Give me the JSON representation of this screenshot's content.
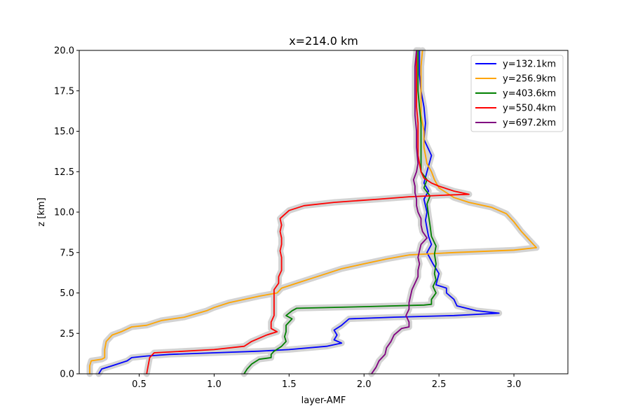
{
  "chart_data": {
    "type": "line",
    "title": "x=214.0 km",
    "xlabel": "layer-AMF",
    "ylabel": "z [km]",
    "xlim": [
      0.1,
      3.36
    ],
    "ylim": [
      0,
      20
    ],
    "xticks": [
      0.5,
      1.0,
      1.5,
      2.0,
      2.5,
      3.0
    ],
    "xtick_labels": [
      "0.5",
      "1.0",
      "1.5",
      "2.0",
      "2.5",
      "3.0"
    ],
    "yticks": [
      0,
      2.5,
      5.0,
      7.5,
      10.0,
      12.5,
      15.0,
      17.5,
      20.0
    ],
    "ytick_labels": [
      "0.0",
      "2.5",
      "5.0",
      "7.5",
      "10.0",
      "12.5",
      "15.0",
      "17.5",
      "20.0"
    ],
    "grid": false,
    "legend_position": "top-right",
    "band_color": "#d3d3d3",
    "series": [
      {
        "name": "y=132.1km",
        "color": "#0000ff",
        "points": [
          [
            0.23,
            0
          ],
          [
            0.25,
            0.3
          ],
          [
            0.32,
            0.5
          ],
          [
            0.42,
            0.8
          ],
          [
            0.45,
            1.0
          ],
          [
            0.55,
            1.1
          ],
          [
            0.7,
            1.2
          ],
          [
            1.0,
            1.3
          ],
          [
            1.3,
            1.4
          ],
          [
            1.5,
            1.5
          ],
          [
            1.75,
            1.7
          ],
          [
            1.85,
            1.9
          ],
          [
            1.8,
            2.1
          ],
          [
            1.82,
            2.4
          ],
          [
            1.8,
            2.7
          ],
          [
            1.85,
            3.0
          ],
          [
            1.9,
            3.4
          ],
          [
            2.2,
            3.5
          ],
          [
            2.6,
            3.6
          ],
          [
            2.9,
            3.75
          ],
          [
            2.75,
            3.9
          ],
          [
            2.62,
            4.2
          ],
          [
            2.6,
            4.6
          ],
          [
            2.55,
            5.0
          ],
          [
            2.55,
            5.3
          ],
          [
            2.48,
            5.5
          ],
          [
            2.5,
            6.2
          ],
          [
            2.46,
            6.8
          ],
          [
            2.42,
            7.5
          ],
          [
            2.45,
            8.0
          ],
          [
            2.43,
            8.5
          ],
          [
            2.42,
            9.0
          ],
          [
            2.41,
            9.5
          ],
          [
            2.42,
            10.0
          ],
          [
            2.4,
            10.8
          ],
          [
            2.43,
            11.3
          ],
          [
            2.4,
            11.8
          ],
          [
            2.42,
            12.5
          ],
          [
            2.45,
            13.5
          ],
          [
            2.4,
            14.5
          ],
          [
            2.41,
            15.5
          ],
          [
            2.4,
            16.5
          ],
          [
            2.38,
            17.5
          ],
          [
            2.37,
            18.5
          ],
          [
            2.37,
            20
          ]
        ]
      },
      {
        "name": "y=256.9km",
        "color": "#ffa500",
        "points": [
          [
            0.17,
            0
          ],
          [
            0.17,
            0.5
          ],
          [
            0.18,
            0.8
          ],
          [
            0.25,
            0.9
          ],
          [
            0.27,
            1.0
          ],
          [
            0.27,
            1.5
          ],
          [
            0.28,
            2.0
          ],
          [
            0.32,
            2.4
          ],
          [
            0.38,
            2.6
          ],
          [
            0.45,
            2.9
          ],
          [
            0.55,
            3.0
          ],
          [
            0.65,
            3.3
          ],
          [
            0.8,
            3.5
          ],
          [
            0.95,
            3.9
          ],
          [
            1.0,
            4.1
          ],
          [
            1.1,
            4.4
          ],
          [
            1.2,
            4.6
          ],
          [
            1.3,
            4.8
          ],
          [
            1.42,
            5.0
          ],
          [
            1.45,
            5.3
          ],
          [
            1.55,
            5.6
          ],
          [
            1.65,
            5.9
          ],
          [
            1.75,
            6.2
          ],
          [
            1.85,
            6.5
          ],
          [
            2.0,
            6.8
          ],
          [
            2.15,
            7.1
          ],
          [
            2.3,
            7.35
          ],
          [
            2.6,
            7.5
          ],
          [
            3.0,
            7.65
          ],
          [
            3.15,
            7.8
          ],
          [
            3.1,
            8.3
          ],
          [
            3.05,
            8.8
          ],
          [
            3.0,
            9.4
          ],
          [
            2.95,
            9.9
          ],
          [
            2.85,
            10.3
          ],
          [
            2.7,
            10.6
          ],
          [
            2.6,
            10.9
          ],
          [
            2.55,
            11.2
          ],
          [
            2.5,
            11.5
          ],
          [
            2.47,
            12.0
          ],
          [
            2.45,
            12.5
          ],
          [
            2.42,
            13.0
          ],
          [
            2.4,
            14.0
          ],
          [
            2.4,
            15.0
          ],
          [
            2.38,
            16.0
          ],
          [
            2.38,
            17.0
          ],
          [
            2.38,
            18.0
          ],
          [
            2.38,
            19.0
          ],
          [
            2.39,
            20
          ]
        ]
      },
      {
        "name": "y=403.6km",
        "color": "#008000",
        "points": [
          [
            1.2,
            0
          ],
          [
            1.22,
            0.3
          ],
          [
            1.25,
            0.6
          ],
          [
            1.3,
            0.9
          ],
          [
            1.38,
            1.0
          ],
          [
            1.38,
            1.2
          ],
          [
            1.4,
            1.4
          ],
          [
            1.45,
            1.7
          ],
          [
            1.48,
            2.0
          ],
          [
            1.47,
            2.3
          ],
          [
            1.48,
            2.6
          ],
          [
            1.48,
            3.0
          ],
          [
            1.52,
            3.4
          ],
          [
            1.48,
            3.6
          ],
          [
            1.52,
            3.9
          ],
          [
            1.55,
            4.05
          ],
          [
            2.0,
            4.15
          ],
          [
            2.4,
            4.25
          ],
          [
            2.45,
            4.3
          ],
          [
            2.45,
            4.6
          ],
          [
            2.48,
            5.0
          ],
          [
            2.46,
            5.4
          ],
          [
            2.48,
            5.8
          ],
          [
            2.47,
            6.2
          ],
          [
            2.48,
            6.8
          ],
          [
            2.47,
            7.4
          ],
          [
            2.48,
            7.9
          ],
          [
            2.45,
            8.5
          ],
          [
            2.44,
            9.2
          ],
          [
            2.43,
            9.8
          ],
          [
            2.42,
            10.5
          ],
          [
            2.44,
            11.0
          ],
          [
            2.4,
            11.5
          ],
          [
            2.42,
            12.0
          ],
          [
            2.38,
            12.5
          ],
          [
            2.38,
            13.5
          ],
          [
            2.38,
            14.5
          ],
          [
            2.38,
            15.5
          ],
          [
            2.37,
            16.5
          ],
          [
            2.36,
            17.5
          ],
          [
            2.36,
            18.5
          ],
          [
            2.36,
            20
          ]
        ]
      },
      {
        "name": "y=550.4km",
        "color": "#ff0000",
        "points": [
          [
            0.55,
            0
          ],
          [
            0.56,
            0.5
          ],
          [
            0.57,
            1.0
          ],
          [
            0.6,
            1.3
          ],
          [
            1.0,
            1.5
          ],
          [
            1.2,
            1.7
          ],
          [
            1.25,
            2.0
          ],
          [
            1.3,
            2.2
          ],
          [
            1.35,
            2.4
          ],
          [
            1.42,
            2.6
          ],
          [
            1.38,
            2.8
          ],
          [
            1.38,
            3.2
          ],
          [
            1.4,
            3.6
          ],
          [
            1.4,
            4.0
          ],
          [
            1.4,
            4.4
          ],
          [
            1.4,
            4.8
          ],
          [
            1.4,
            5.2
          ],
          [
            1.43,
            5.6
          ],
          [
            1.43,
            6.0
          ],
          [
            1.45,
            6.4
          ],
          [
            1.45,
            6.8
          ],
          [
            1.45,
            7.2
          ],
          [
            1.44,
            7.6
          ],
          [
            1.45,
            8.0
          ],
          [
            1.45,
            8.4
          ],
          [
            1.44,
            8.8
          ],
          [
            1.45,
            9.2
          ],
          [
            1.44,
            9.6
          ],
          [
            1.5,
            10.1
          ],
          [
            1.6,
            10.4
          ],
          [
            1.8,
            10.6
          ],
          [
            2.1,
            10.8
          ],
          [
            2.3,
            10.95
          ],
          [
            2.55,
            11.05
          ],
          [
            2.7,
            11.1
          ],
          [
            2.6,
            11.3
          ],
          [
            2.5,
            11.6
          ],
          [
            2.45,
            11.8
          ],
          [
            2.4,
            12.1
          ],
          [
            2.38,
            12.5
          ],
          [
            2.36,
            13.5
          ],
          [
            2.36,
            14.5
          ],
          [
            2.36,
            15.5
          ],
          [
            2.35,
            16.5
          ],
          [
            2.35,
            17.5
          ],
          [
            2.35,
            18.5
          ],
          [
            2.35,
            20
          ]
        ]
      },
      {
        "name": "y=697.2km",
        "color": "#800080",
        "points": [
          [
            2.05,
            0
          ],
          [
            2.08,
            0.4
          ],
          [
            2.1,
            0.8
          ],
          [
            2.14,
            1.2
          ],
          [
            2.15,
            1.6
          ],
          [
            2.18,
            2.0
          ],
          [
            2.2,
            2.4
          ],
          [
            2.25,
            2.8
          ],
          [
            2.3,
            2.9
          ],
          [
            2.3,
            3.2
          ],
          [
            2.28,
            3.6
          ],
          [
            2.3,
            4.0
          ],
          [
            2.3,
            4.4
          ],
          [
            2.31,
            4.8
          ],
          [
            2.32,
            5.2
          ],
          [
            2.34,
            5.6
          ],
          [
            2.36,
            6.0
          ],
          [
            2.36,
            6.4
          ],
          [
            2.37,
            6.8
          ],
          [
            2.36,
            7.2
          ],
          [
            2.37,
            7.6
          ],
          [
            2.38,
            8.0
          ],
          [
            2.42,
            8.4
          ],
          [
            2.39,
            8.8
          ],
          [
            2.38,
            9.2
          ],
          [
            2.38,
            9.6
          ],
          [
            2.36,
            10.0
          ],
          [
            2.35,
            10.4
          ],
          [
            2.35,
            10.8
          ],
          [
            2.34,
            11.2
          ],
          [
            2.34,
            11.6
          ],
          [
            2.33,
            12.0
          ],
          [
            2.35,
            12.5
          ],
          [
            2.36,
            13.0
          ],
          [
            2.35,
            14.0
          ],
          [
            2.35,
            15.0
          ],
          [
            2.34,
            16.0
          ],
          [
            2.34,
            17.0
          ],
          [
            2.34,
            18.0
          ],
          [
            2.34,
            19.0
          ],
          [
            2.35,
            20
          ]
        ]
      }
    ]
  }
}
